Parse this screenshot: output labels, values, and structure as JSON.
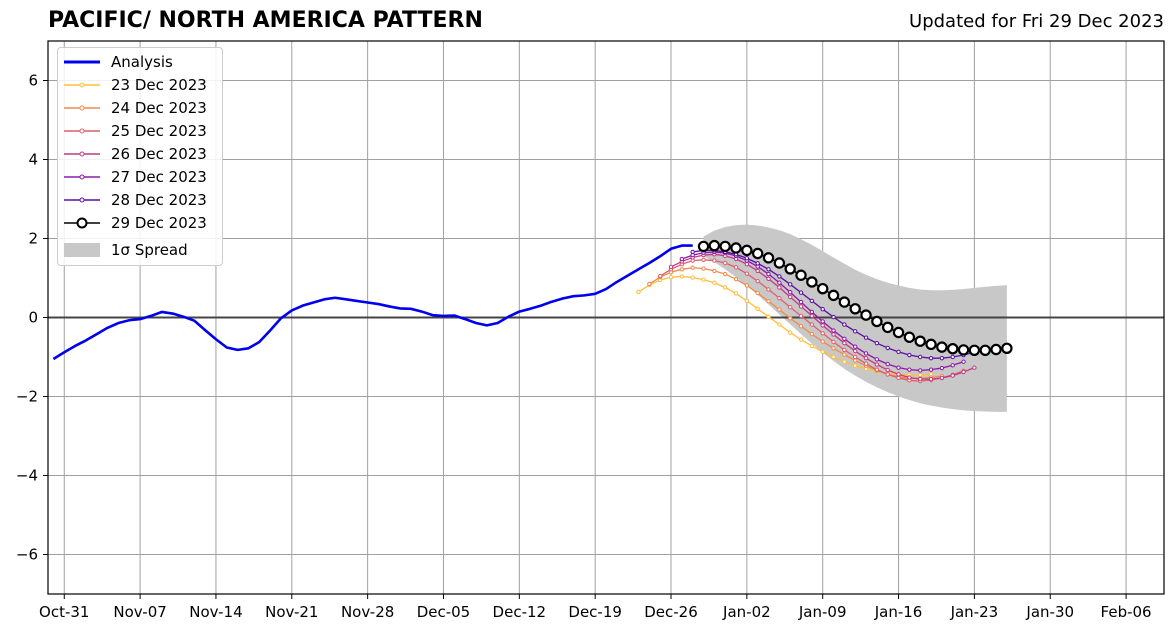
{
  "header": {
    "title": "PACIFIC/ NORTH AMERICA PATTERN",
    "updated": "Updated for Fri 29 Dec 2023"
  },
  "legend": {
    "analysis": "Analysis",
    "f23": "23 Dec 2023",
    "f24": "24 Dec 2023",
    "f25": "25 Dec 2023",
    "f26": "26 Dec 2023",
    "f27": "27 Dec 2023",
    "f28": "28 Dec 2023",
    "f29": "29 Dec 2023",
    "spread": "1σ Spread"
  },
  "chart_data": {
    "type": "line",
    "title": "PACIFIC/ NORTH AMERICA PATTERN",
    "xlabel": "",
    "ylabel": "",
    "xlim": [
      -1.5,
      101.5
    ],
    "ylim": [
      -7,
      7
    ],
    "x_tick_days": [
      0,
      7,
      14,
      21,
      28,
      35,
      42,
      49,
      56,
      63,
      70,
      77,
      84,
      91,
      98
    ],
    "x_tick_labels": [
      "Oct-31",
      "Nov-07",
      "Nov-14",
      "Nov-21",
      "Nov-28",
      "Dec-05",
      "Dec-12",
      "Dec-19",
      "Dec-26",
      "Jan-02",
      "Jan-09",
      "Jan-16",
      "Jan-23",
      "Jan-30",
      "Feb-06"
    ],
    "y_ticks": [
      -6,
      -4,
      -2,
      0,
      2,
      4,
      6
    ],
    "y_tick_labels": [
      "−6",
      "−4",
      "−2",
      "0",
      "2",
      "4",
      "6"
    ],
    "grid": true,
    "zero_line": true,
    "legend_position": "top-left",
    "colors": {
      "analysis": "#0000ee",
      "f23": "#fdbf3c",
      "f24": "#f2894a",
      "f25": "#e05e6c",
      "f26": "#c23b82",
      "f27": "#8c1aa8",
      "f28": "#5a0fa0",
      "f29": "#000000",
      "spread": "#c8c8c8"
    },
    "analysis": {
      "name": "Analysis",
      "x": [
        -1,
        0,
        1,
        2,
        3,
        4,
        5,
        6,
        7,
        8,
        9,
        10,
        11,
        12,
        13,
        14,
        15,
        16,
        17,
        18,
        19,
        20,
        21,
        22,
        23,
        24,
        25,
        26,
        27,
        28,
        29,
        30,
        31,
        32,
        33,
        34,
        35,
        36,
        37,
        38,
        39,
        40,
        41,
        42,
        43,
        44,
        45,
        46,
        47,
        48,
        49,
        50,
        51,
        52,
        53,
        54,
        55,
        56,
        57,
        58
      ],
      "y": [
        -1.05,
        -0.88,
        -0.72,
        -0.58,
        -0.42,
        -0.26,
        -0.14,
        -0.07,
        -0.04,
        0.04,
        0.14,
        0.1,
        0.02,
        -0.08,
        -0.32,
        -0.55,
        -0.76,
        -0.82,
        -0.78,
        -0.62,
        -0.33,
        -0.02,
        0.18,
        0.3,
        0.38,
        0.46,
        0.5,
        0.46,
        0.42,
        0.38,
        0.34,
        0.28,
        0.23,
        0.22,
        0.15,
        0.06,
        0.04,
        0.05,
        -0.04,
        -0.14,
        -0.2,
        -0.14,
        0.02,
        0.15,
        0.22,
        0.3,
        0.4,
        0.48,
        0.54,
        0.56,
        0.6,
        0.72,
        0.9,
        1.06,
        1.22,
        1.38,
        1.55,
        1.74,
        1.82,
        1.82
      ]
    },
    "forecasts": [
      {
        "name": "23 Dec 2023",
        "key": "f23",
        "x_start": 53,
        "y": [
          0.65,
          0.82,
          0.95,
          1.02,
          1.04,
          1.01,
          0.96,
          0.88,
          0.76,
          0.61,
          0.42,
          0.22,
          0.02,
          -0.18,
          -0.38,
          -0.56,
          -0.72,
          -0.87,
          -1.0,
          -1.12,
          -1.22,
          -1.3,
          -1.36,
          -1.41,
          -1.44,
          -1.45,
          -1.46,
          -1.44
        ]
      },
      {
        "name": "24 Dec 2023",
        "key": "f24",
        "x_start": 54,
        "y": [
          0.85,
          1.02,
          1.15,
          1.22,
          1.26,
          1.24,
          1.18,
          1.1,
          0.97,
          0.81,
          0.62,
          0.41,
          0.2,
          -0.02,
          -0.22,
          -0.42,
          -0.61,
          -0.78,
          -0.94,
          -1.09,
          -1.22,
          -1.34,
          -1.44,
          -1.5,
          -1.54,
          -1.54,
          -1.52,
          -1.48
        ]
      },
      {
        "name": "25 Dec 2023",
        "key": "f25",
        "x_start": 55,
        "y": [
          1.05,
          1.22,
          1.35,
          1.44,
          1.46,
          1.44,
          1.38,
          1.27,
          1.11,
          0.92,
          0.71,
          0.49,
          0.26,
          0.04,
          -0.18,
          -0.4,
          -0.62,
          -0.82,
          -1.0,
          -1.17,
          -1.32,
          -1.44,
          -1.53,
          -1.59,
          -1.61,
          -1.58,
          -1.53,
          -1.45,
          -1.35
        ]
      },
      {
        "name": "26 Dec 2023",
        "key": "f26",
        "x_start": 56,
        "y": [
          1.28,
          1.42,
          1.52,
          1.58,
          1.6,
          1.56,
          1.48,
          1.35,
          1.18,
          0.98,
          0.76,
          0.52,
          0.28,
          0.04,
          -0.2,
          -0.43,
          -0.65,
          -0.85,
          -1.03,
          -1.19,
          -1.33,
          -1.44,
          -1.52,
          -1.56,
          -1.56,
          -1.53,
          -1.47,
          -1.38,
          -1.27
        ]
      },
      {
        "name": "27 Dec 2023",
        "key": "f27",
        "x_start": 57,
        "y": [
          1.48,
          1.58,
          1.64,
          1.66,
          1.63,
          1.56,
          1.44,
          1.29,
          1.1,
          0.88,
          0.64,
          0.39,
          0.14,
          -0.1,
          -0.33,
          -0.54,
          -0.74,
          -0.91,
          -1.06,
          -1.18,
          -1.27,
          -1.32,
          -1.34,
          -1.32,
          -1.28,
          -1.21,
          -1.12
        ]
      },
      {
        "name": "28 Dec 2023",
        "key": "f28",
        "x_start": 58,
        "y": [
          1.66,
          1.7,
          1.7,
          1.66,
          1.6,
          1.5,
          1.37,
          1.22,
          1.04,
          0.84,
          0.63,
          0.42,
          0.21,
          0.01,
          -0.18,
          -0.35,
          -0.51,
          -0.65,
          -0.77,
          -0.87,
          -0.95,
          -1.0,
          -1.03,
          -1.03,
          -1.0,
          -0.95,
          -0.88
        ]
      },
      {
        "name": "29 Dec 2023",
        "key": "f29",
        "x_start": 59,
        "y": [
          1.8,
          1.82,
          1.8,
          1.76,
          1.7,
          1.62,
          1.51,
          1.38,
          1.23,
          1.07,
          0.9,
          0.73,
          0.56,
          0.39,
          0.22,
          0.06,
          -0.1,
          -0.25,
          -0.38,
          -0.5,
          -0.6,
          -0.68,
          -0.75,
          -0.79,
          -0.82,
          -0.83,
          -0.83,
          -0.81,
          -0.78
        ]
      }
    ],
    "spread": {
      "name": "1σ Spread",
      "x_start": 59,
      "upper": [
        2.05,
        2.2,
        2.29,
        2.34,
        2.35,
        2.33,
        2.28,
        2.21,
        2.11,
        1.98,
        1.84,
        1.68,
        1.52,
        1.36,
        1.21,
        1.08,
        0.97,
        0.88,
        0.81,
        0.75,
        0.71,
        0.69,
        0.69,
        0.7,
        0.72,
        0.75,
        0.78,
        0.8,
        0.82
      ],
      "lower": [
        1.55,
        1.4,
        1.22,
        1.02,
        0.8,
        0.57,
        0.33,
        0.08,
        -0.17,
        -0.42,
        -0.66,
        -0.89,
        -1.1,
        -1.3,
        -1.47,
        -1.63,
        -1.77,
        -1.89,
        -2.0,
        -2.09,
        -2.17,
        -2.23,
        -2.28,
        -2.32,
        -2.35,
        -2.37,
        -2.38,
        -2.39,
        -2.39
      ]
    }
  }
}
